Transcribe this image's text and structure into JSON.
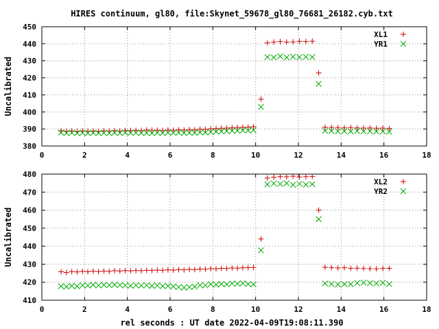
{
  "figure": {
    "title": "HIRES continuum, gl80, file:Skynet_59678_gl80_76681_26182.cyb.txt",
    "xlabel": "rel seconds : UT date 2022-04-09T19:08:11.390"
  },
  "colors": {
    "XL": "#cc0000",
    "YR": "#00aa00",
    "axis": "#000000",
    "grid": "#888888"
  },
  "chart_data": [
    {
      "type": "scatter",
      "title": "HIRES continuum, gl80, file:Skynet_59678_gl80_76681_26182.cyb.txt",
      "xlabel": "",
      "ylabel": "Uncalibrated",
      "xlim": [
        0,
        18
      ],
      "ylim": [
        380,
        450
      ],
      "xticks": [
        "0",
        "2",
        "4",
        "6",
        "8",
        "10",
        "12",
        "14",
        "16",
        "18"
      ],
      "yticks": [
        "380",
        "390",
        "400",
        "410",
        "420",
        "430",
        "440",
        "450"
      ],
      "grid": true,
      "legend": "top-right",
      "series": [
        {
          "name": "XL1",
          "marker": "+",
          "x": [
            0.9,
            1.15,
            1.4,
            1.65,
            1.9,
            2.15,
            2.4,
            2.65,
            2.9,
            3.15,
            3.4,
            3.65,
            3.9,
            4.15,
            4.4,
            4.65,
            4.9,
            5.15,
            5.4,
            5.65,
            5.9,
            6.15,
            6.4,
            6.65,
            6.9,
            7.15,
            7.4,
            7.65,
            7.9,
            8.15,
            8.4,
            8.65,
            8.9,
            9.15,
            9.4,
            9.65,
            9.9,
            10.25,
            10.55,
            10.85,
            11.15,
            11.45,
            11.75,
            12.05,
            12.35,
            12.65,
            12.95,
            13.25,
            13.55,
            13.85,
            14.15,
            14.45,
            14.75,
            15.05,
            15.35,
            15.65,
            15.95,
            16.25
          ],
          "y": [
            388.9,
            388.7,
            388.8,
            388.6,
            388.9,
            388.7,
            388.8,
            388.6,
            388.9,
            388.8,
            389.0,
            388.8,
            389.1,
            389.0,
            389.2,
            389.1,
            389.4,
            389.2,
            389.3,
            389.1,
            389.4,
            389.2,
            389.5,
            389.3,
            389.6,
            389.5,
            389.9,
            389.8,
            390.1,
            390.2,
            390.4,
            390.5,
            390.7,
            390.8,
            391.0,
            391.1,
            391.3,
            407.5,
            440.5,
            441.0,
            441.3,
            441.0,
            441.1,
            441.4,
            441.3,
            441.5,
            422.9,
            391.0,
            390.9,
            390.8,
            390.7,
            390.8,
            390.6,
            390.5,
            390.6,
            390.4,
            390.5,
            390.3
          ]
        },
        {
          "name": "YR1",
          "marker": "x",
          "x": [
            0.9,
            1.15,
            1.4,
            1.65,
            1.9,
            2.15,
            2.4,
            2.65,
            2.9,
            3.15,
            3.4,
            3.65,
            3.9,
            4.15,
            4.4,
            4.65,
            4.9,
            5.15,
            5.4,
            5.65,
            5.9,
            6.15,
            6.4,
            6.65,
            6.9,
            7.15,
            7.4,
            7.65,
            7.9,
            8.15,
            8.4,
            8.65,
            8.9,
            9.15,
            9.4,
            9.65,
            9.9,
            10.25,
            10.55,
            10.85,
            11.15,
            11.45,
            11.75,
            12.05,
            12.35,
            12.65,
            12.95,
            13.25,
            13.55,
            13.85,
            14.15,
            14.45,
            14.75,
            15.05,
            15.35,
            15.65,
            15.95,
            16.25
          ],
          "y": [
            387.9,
            387.6,
            387.8,
            387.5,
            387.7,
            387.5,
            387.8,
            387.6,
            387.7,
            387.5,
            387.8,
            387.6,
            387.9,
            387.7,
            387.8,
            387.6,
            387.7,
            387.5,
            387.8,
            387.6,
            387.9,
            387.7,
            387.9,
            387.6,
            387.8,
            387.7,
            388.0,
            387.9,
            388.2,
            388.4,
            388.6,
            388.7,
            388.9,
            389.0,
            389.2,
            389.1,
            389.3,
            403.0,
            432.2,
            432.0,
            432.6,
            432.0,
            432.4,
            432.1,
            432.3,
            432.2,
            416.5,
            388.9,
            388.8,
            388.6,
            388.7,
            388.5,
            388.8,
            388.6,
            388.7,
            388.5,
            388.6,
            388.4
          ]
        }
      ]
    },
    {
      "type": "scatter",
      "title": "",
      "xlabel": "rel seconds : UT date 2022-04-09T19:08:11.390",
      "ylabel": "Uncalibrated",
      "xlim": [
        0,
        18
      ],
      "ylim": [
        410,
        480
      ],
      "xticks": [
        "0",
        "2",
        "4",
        "6",
        "8",
        "10",
        "12",
        "14",
        "16",
        "18"
      ],
      "yticks": [
        "410",
        "420",
        "430",
        "440",
        "450",
        "460",
        "470",
        "480"
      ],
      "grid": true,
      "legend": "top-right",
      "series": [
        {
          "name": "XL2",
          "marker": "+",
          "x": [
            0.9,
            1.15,
            1.4,
            1.65,
            1.9,
            2.15,
            2.4,
            2.65,
            2.9,
            3.15,
            3.4,
            3.65,
            3.9,
            4.15,
            4.4,
            4.65,
            4.9,
            5.15,
            5.4,
            5.65,
            5.9,
            6.15,
            6.4,
            6.65,
            6.9,
            7.15,
            7.4,
            7.65,
            7.9,
            8.15,
            8.4,
            8.65,
            8.9,
            9.15,
            9.4,
            9.65,
            9.9,
            10.25,
            10.55,
            10.85,
            11.15,
            11.45,
            11.75,
            12.05,
            12.35,
            12.65,
            12.95,
            13.25,
            13.55,
            13.85,
            14.15,
            14.45,
            14.75,
            15.05,
            15.35,
            15.65,
            15.95,
            16.25
          ],
          "y": [
            425.8,
            425.4,
            425.9,
            425.7,
            426.0,
            425.8,
            426.1,
            425.9,
            426.2,
            426.0,
            426.4,
            426.2,
            426.4,
            426.3,
            426.5,
            426.4,
            426.6,
            426.5,
            426.7,
            426.6,
            426.9,
            426.7,
            427.0,
            426.8,
            427.1,
            427.0,
            427.3,
            427.2,
            427.5,
            427.4,
            427.7,
            427.6,
            427.9,
            427.8,
            428.0,
            428.1,
            428.2,
            444.0,
            477.8,
            478.3,
            478.6,
            478.5,
            478.8,
            478.4,
            478.6,
            478.7,
            460.0,
            428.3,
            428.1,
            427.9,
            428.0,
            427.7,
            427.8,
            427.6,
            427.5,
            427.4,
            427.6,
            427.7
          ]
        },
        {
          "name": "YR2",
          "marker": "x",
          "x": [
            0.9,
            1.15,
            1.4,
            1.65,
            1.9,
            2.15,
            2.4,
            2.65,
            2.9,
            3.15,
            3.4,
            3.65,
            3.9,
            4.15,
            4.4,
            4.65,
            4.9,
            5.15,
            5.4,
            5.65,
            5.9,
            6.15,
            6.4,
            6.65,
            6.9,
            7.15,
            7.4,
            7.65,
            7.9,
            8.15,
            8.4,
            8.65,
            8.9,
            9.15,
            9.4,
            9.65,
            9.9,
            10.25,
            10.55,
            10.85,
            11.15,
            11.45,
            11.75,
            12.05,
            12.35,
            12.65,
            12.95,
            13.25,
            13.55,
            13.85,
            14.15,
            14.45,
            14.75,
            15.05,
            15.35,
            15.65,
            15.95,
            16.25
          ],
          "y": [
            417.8,
            417.5,
            418.0,
            417.7,
            418.3,
            418.1,
            418.5,
            418.2,
            418.5,
            418.3,
            418.6,
            418.4,
            418.2,
            418.0,
            418.3,
            418.1,
            418.3,
            417.9,
            418.2,
            417.8,
            418.0,
            417.6,
            417.3,
            417.0,
            417.3,
            417.5,
            418.4,
            418.2,
            418.9,
            418.6,
            419.0,
            418.8,
            419.3,
            419.1,
            419.4,
            419.0,
            418.8,
            437.7,
            474.3,
            474.8,
            474.5,
            474.9,
            474.0,
            474.6,
            474.2,
            474.4,
            455.0,
            419.3,
            419.0,
            418.8,
            418.9,
            418.9,
            419.5,
            419.8,
            419.5,
            419.3,
            419.7,
            419.0
          ]
        }
      ]
    }
  ]
}
